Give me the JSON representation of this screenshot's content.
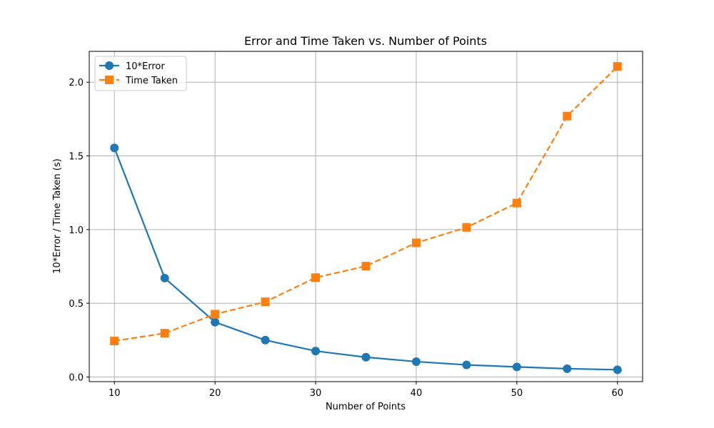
{
  "chart_data": {
    "type": "line",
    "title": "Error and Time Taken vs. Number of Points",
    "xlabel": "Number of Points",
    "ylabel": "10*Error / Time Taken (s)",
    "x": [
      10,
      15,
      20,
      25,
      30,
      35,
      40,
      45,
      50,
      55,
      60
    ],
    "xlim": [
      7.5,
      62.5
    ],
    "ylim": [
      -0.0317,
      2.2092
    ],
    "xticks": [
      "10",
      "20",
      "30",
      "40",
      "50",
      "60"
    ],
    "yticks": [
      "0.0",
      "0.5",
      "1.0",
      "1.5",
      "2.0"
    ],
    "grid": true,
    "legend_position": "top-left",
    "series": [
      {
        "name": "10*Error",
        "values": [
          1.554,
          0.671,
          0.372,
          0.25,
          0.176,
          0.134,
          0.104,
          0.082,
          0.068,
          0.056,
          0.049
        ],
        "color": "#1f77b4",
        "line_style": "solid",
        "marker": "circle"
      },
      {
        "name": "Time Taken",
        "values": [
          0.244,
          0.297,
          0.426,
          0.51,
          0.674,
          0.752,
          0.91,
          1.015,
          1.18,
          1.77,
          2.107
        ],
        "color": "#ff7f0e",
        "line_style": "dashed",
        "marker": "square"
      }
    ]
  }
}
